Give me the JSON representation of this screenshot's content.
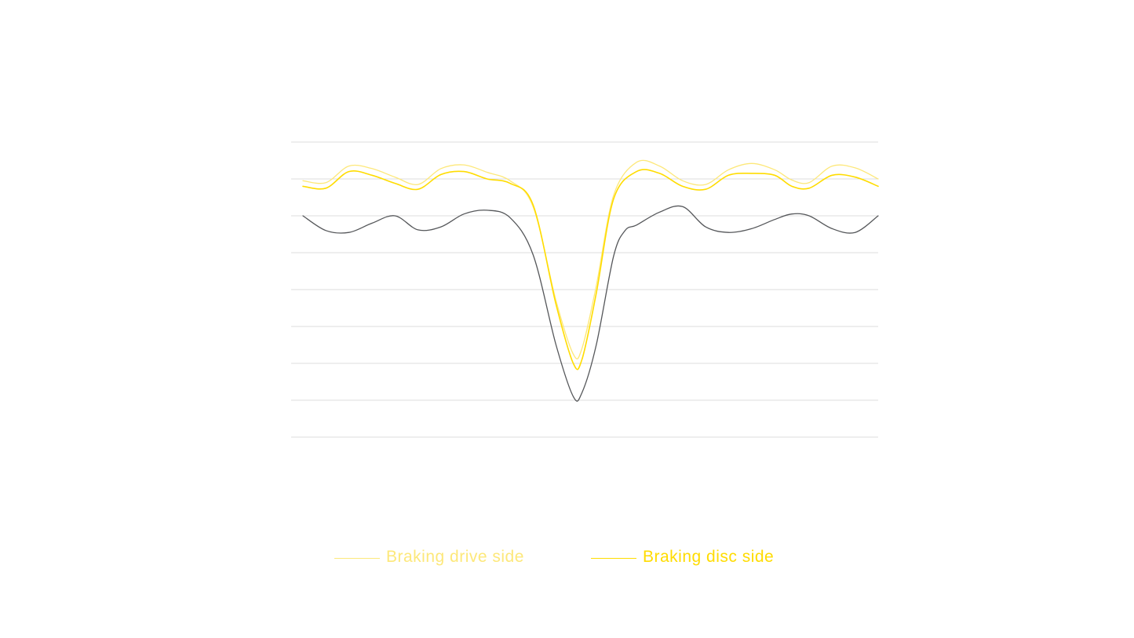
{
  "colors": {
    "background": "#ffffff",
    "grid": "#dcdcdc",
    "drive_side": "#fde87a",
    "disc_side": "#ffdc00",
    "baseline": "#55575a"
  },
  "chart_data": {
    "type": "line",
    "title": "",
    "xlabel": "",
    "ylabel": "",
    "xlim": [
      0,
      100
    ],
    "ylim": [
      0,
      8
    ],
    "grid": true,
    "grid_lines": [
      0,
      1,
      2,
      3,
      4,
      5,
      6,
      7,
      8
    ],
    "legend_position": "bottom-center",
    "series": [
      {
        "name": "Braking drive side",
        "color": "#fde87a",
        "points": [
          [
            0,
            6.95
          ],
          [
            4,
            6.9
          ],
          [
            8,
            7.35
          ],
          [
            12,
            7.28
          ],
          [
            16,
            7.05
          ],
          [
            20,
            6.85
          ],
          [
            24,
            7.28
          ],
          [
            28,
            7.38
          ],
          [
            32,
            7.18
          ],
          [
            36,
            6.95
          ],
          [
            40,
            6.25
          ],
          [
            44,
            3.7
          ],
          [
            47,
            2.25
          ],
          [
            48.5,
            2.4
          ],
          [
            51,
            4.1
          ],
          [
            54,
            6.55
          ],
          [
            58,
            7.45
          ],
          [
            62,
            7.35
          ],
          [
            66,
            6.95
          ],
          [
            70,
            6.85
          ],
          [
            74,
            7.25
          ],
          [
            78,
            7.42
          ],
          [
            82,
            7.25
          ],
          [
            85,
            6.97
          ],
          [
            88,
            6.9
          ],
          [
            92,
            7.35
          ],
          [
            96,
            7.3
          ],
          [
            100,
            7.0
          ]
        ]
      },
      {
        "name": "Braking disc side",
        "color": "#ffdc00",
        "points": [
          [
            0,
            6.8
          ],
          [
            4,
            6.75
          ],
          [
            8,
            7.2
          ],
          [
            12,
            7.1
          ],
          [
            16,
            6.88
          ],
          [
            20,
            6.72
          ],
          [
            24,
            7.12
          ],
          [
            28,
            7.2
          ],
          [
            32,
            7.0
          ],
          [
            36,
            6.88
          ],
          [
            40,
            6.3
          ],
          [
            44,
            3.6
          ],
          [
            47,
            2.0
          ],
          [
            48.5,
            2.1
          ],
          [
            51,
            3.9
          ],
          [
            54,
            6.45
          ],
          [
            58,
            7.2
          ],
          [
            62,
            7.15
          ],
          [
            66,
            6.8
          ],
          [
            70,
            6.72
          ],
          [
            74,
            7.1
          ],
          [
            78,
            7.15
          ],
          [
            82,
            7.1
          ],
          [
            85,
            6.8
          ],
          [
            88,
            6.75
          ],
          [
            92,
            7.1
          ],
          [
            96,
            7.05
          ],
          [
            100,
            6.8
          ]
        ]
      },
      {
        "color": "#55575a",
        "points": [
          [
            0,
            6.0
          ],
          [
            4,
            5.6
          ],
          [
            8,
            5.55
          ],
          [
            12,
            5.8
          ],
          [
            16,
            6.0
          ],
          [
            20,
            5.62
          ],
          [
            24,
            5.7
          ],
          [
            28,
            6.05
          ],
          [
            32,
            6.15
          ],
          [
            36,
            5.95
          ],
          [
            40,
            4.95
          ],
          [
            44,
            2.5
          ],
          [
            47,
            1.1
          ],
          [
            48.5,
            1.2
          ],
          [
            51,
            2.5
          ],
          [
            54,
            4.9
          ],
          [
            56,
            5.6
          ],
          [
            58,
            5.75
          ],
          [
            62,
            6.1
          ],
          [
            66,
            6.25
          ],
          [
            70,
            5.7
          ],
          [
            74,
            5.55
          ],
          [
            78,
            5.65
          ],
          [
            82,
            5.9
          ],
          [
            85,
            6.05
          ],
          [
            88,
            6.0
          ],
          [
            92,
            5.65
          ],
          [
            96,
            5.55
          ],
          [
            100,
            6.0
          ]
        ]
      }
    ]
  }
}
